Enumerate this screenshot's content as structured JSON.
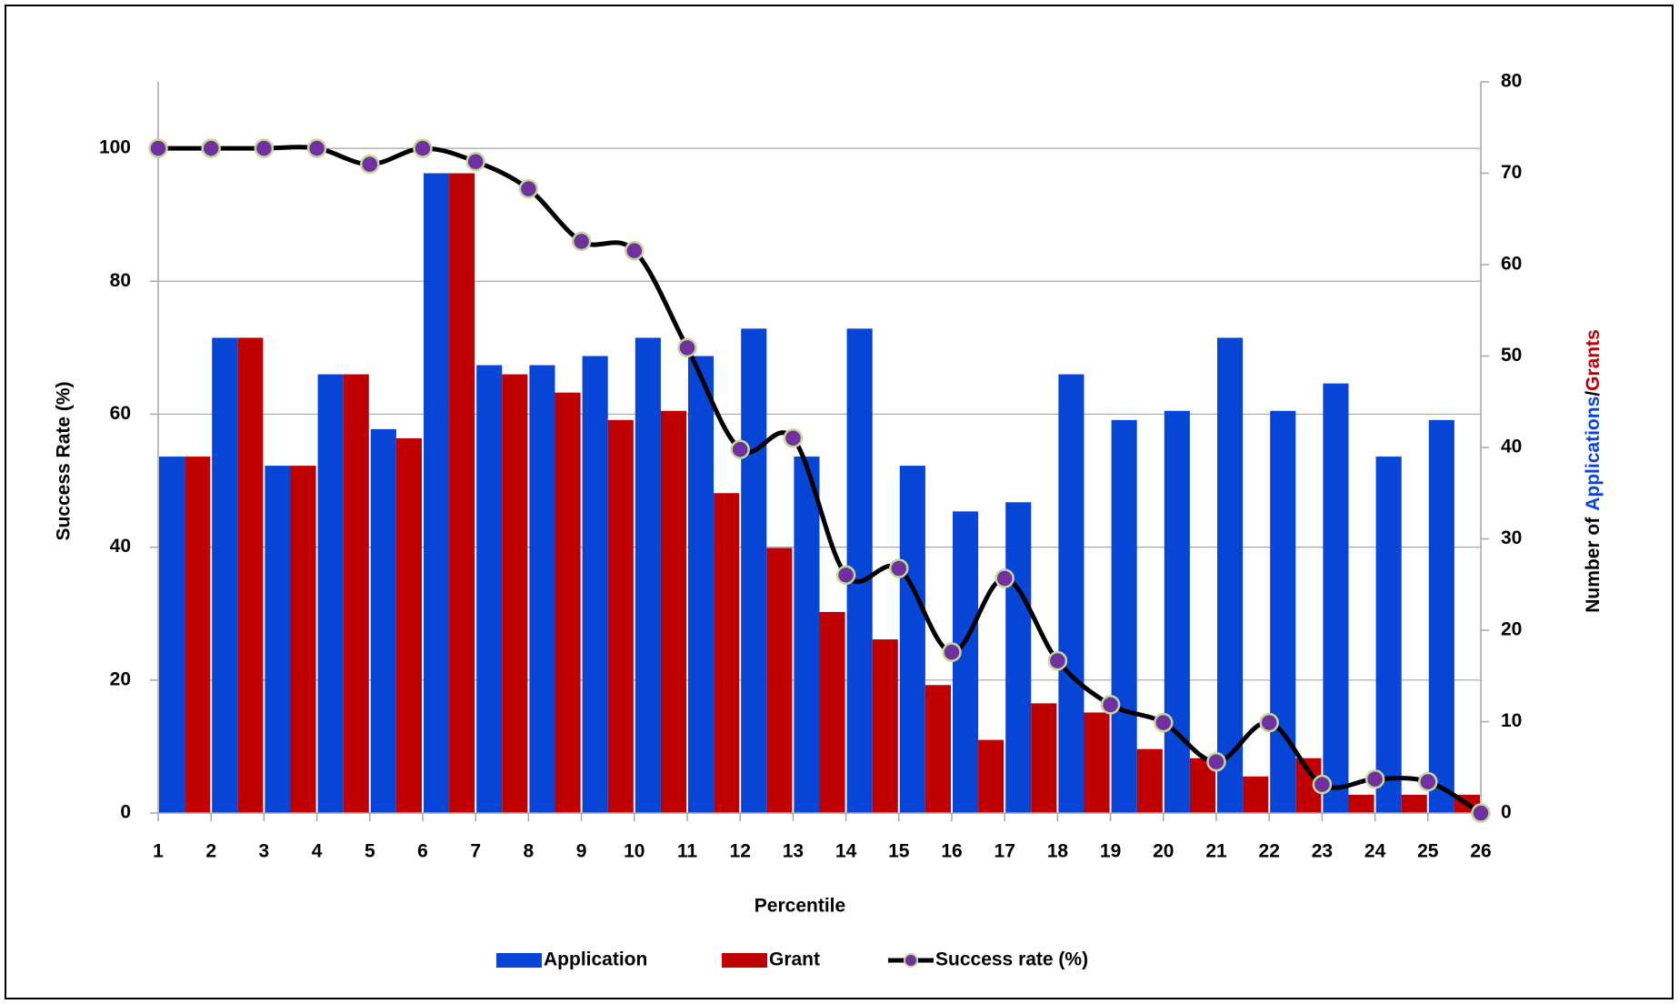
{
  "chart_data": {
    "type": "bar-line",
    "xlabel": "Percentile",
    "ylabel": "Success Rate (%)",
    "y2label": [
      "Number of",
      "Applications",
      "/",
      "Grants"
    ],
    "x": [
      1,
      2,
      3,
      4,
      5,
      6,
      7,
      8,
      9,
      10,
      11,
      12,
      13,
      14,
      15,
      16,
      17,
      18,
      19,
      20,
      21,
      22,
      23,
      24,
      25,
      26
    ],
    "xlim": [
      1,
      26
    ],
    "xticks": [
      1,
      2,
      3,
      4,
      5,
      6,
      7,
      8,
      9,
      10,
      11,
      12,
      13,
      14,
      15,
      16,
      17,
      18,
      19,
      20,
      21,
      22,
      23,
      24,
      25,
      26
    ],
    "ylim": [
      0,
      110
    ],
    "yticks": [
      0,
      20,
      40,
      60,
      80,
      100
    ],
    "y2lim": [
      0,
      80
    ],
    "y2ticks": [
      0,
      10,
      20,
      30,
      40,
      50,
      60,
      70,
      80
    ],
    "grid": true,
    "legend": "bottom",
    "series": [
      {
        "name": "Application",
        "color": "#0645d6",
        "axis": "y2",
        "kind": "bar",
        "values": [
          39,
          52,
          38,
          48,
          42,
          70,
          49,
          49,
          50,
          52,
          50,
          53,
          39,
          53,
          38,
          33,
          34,
          48,
          43,
          44,
          52,
          44,
          47,
          39,
          43,
          null
        ]
      },
      {
        "name": "Grant",
        "color": "#c00000",
        "axis": "y2",
        "kind": "bar",
        "values": [
          39,
          52,
          38,
          48,
          41,
          70,
          48,
          46,
          43,
          44,
          35,
          29,
          22,
          19,
          14,
          8,
          12,
          11,
          7,
          6,
          4,
          6,
          2,
          2,
          2,
          null
        ]
      },
      {
        "name": "Success rate (%)",
        "color": "#000000",
        "marker_color": "#7030a0",
        "kind": "line",
        "values": [
          100,
          100,
          100,
          100,
          97.6,
          100,
          98,
          93.9,
          86,
          84.6,
          70,
          54.7,
          56.4,
          35.8,
          36.8,
          24.2,
          35.3,
          22.9,
          16.3,
          13.6,
          7.7,
          13.6,
          4.3,
          5.1,
          4.7,
          0
        ]
      }
    ]
  }
}
